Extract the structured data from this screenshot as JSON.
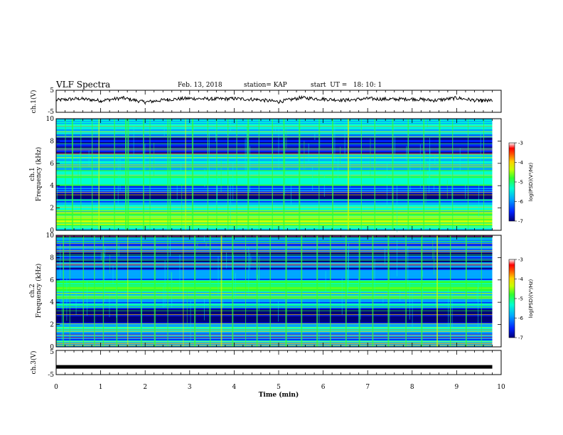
{
  "header": {
    "title": "VLF Spectra",
    "date": "Feb. 13, 2018",
    "station": "station= KAP",
    "start": "start  UT =   18: 10: 1"
  },
  "chart_data": [
    {
      "type": "line",
      "panel": "ch1-waveform",
      "ylabel": "ch.1(V)",
      "ylim": [
        -5,
        5
      ],
      "yticks": [
        "5",
        "-5"
      ],
      "xlim": [
        0,
        10
      ],
      "x": [
        0.0,
        0.5,
        1.0,
        1.5,
        2.0,
        2.5,
        3.0,
        3.5,
        4.0,
        4.5,
        5.0,
        5.5,
        6.0,
        6.5,
        7.0,
        7.5,
        8.0,
        8.5,
        9.0,
        9.5,
        9.8
      ],
      "y": [
        0.5,
        1.2,
        0.3,
        1.5,
        -0.4,
        0.8,
        1.3,
        1.0,
        1.2,
        0.8,
        -0.2,
        1.6,
        1.0,
        0.5,
        1.2,
        0.9,
        1.1,
        0.4,
        1.5,
        0.2,
        0.3
      ]
    },
    {
      "type": "heatmap",
      "panel": "ch1-spectrogram",
      "ylabel_top": "ch.1",
      "ylabel": "Frequency (kHz)",
      "ylim": [
        0,
        10
      ],
      "yticks": [
        "0",
        "2",
        "4",
        "6",
        "8",
        "10"
      ],
      "xlim": [
        0,
        9.8
      ],
      "bands": [
        {
          "from": 0.0,
          "to": 0.5,
          "level": 0.45
        },
        {
          "from": 0.5,
          "to": 1.0,
          "level": 0.58
        },
        {
          "from": 1.0,
          "to": 1.6,
          "level": 0.62
        },
        {
          "from": 1.6,
          "to": 2.4,
          "level": 0.45
        },
        {
          "from": 2.4,
          "to": 2.8,
          "level": 0.28
        },
        {
          "from": 2.8,
          "to": 3.4,
          "level": 0.05
        },
        {
          "from": 3.4,
          "to": 4.0,
          "level": 0.22
        },
        {
          "from": 4.0,
          "to": 4.6,
          "level": 0.4
        },
        {
          "from": 4.6,
          "to": 5.4,
          "level": 0.52
        },
        {
          "from": 5.4,
          "to": 6.0,
          "level": 0.32
        },
        {
          "from": 6.0,
          "to": 6.8,
          "level": 0.38
        },
        {
          "from": 6.8,
          "to": 7.6,
          "level": 0.1
        },
        {
          "from": 7.6,
          "to": 8.6,
          "level": 0.2
        },
        {
          "from": 8.6,
          "to": 10.0,
          "level": 0.4
        }
      ],
      "bursts_min": [
        0.2,
        0.35,
        0.55,
        0.8,
        0.95,
        1.3,
        1.55,
        1.6,
        1.95,
        2.1,
        2.5,
        2.55,
        2.9,
        3.05,
        3.4,
        3.6,
        3.85,
        4.05,
        4.3,
        4.55,
        4.85,
        5.1,
        5.45,
        5.9,
        6.2,
        6.55,
        6.85,
        7.15,
        7.55,
        7.9,
        8.25,
        8.6,
        8.9,
        9.25,
        9.6
      ]
    },
    {
      "type": "heatmap",
      "panel": "ch2-spectrogram",
      "ylabel_top": "ch.2",
      "ylabel": "Frequency (kHz)",
      "ylim": [
        0,
        10
      ],
      "yticks": [
        "0",
        "2",
        "4",
        "6",
        "8",
        "10"
      ],
      "xlim": [
        0,
        9.8
      ],
      "bands": [
        {
          "from": 0.0,
          "to": 0.6,
          "level": 0.4
        },
        {
          "from": 0.6,
          "to": 1.2,
          "level": 0.3
        },
        {
          "from": 1.2,
          "to": 1.8,
          "level": 0.38
        },
        {
          "from": 1.8,
          "to": 2.2,
          "level": 0.22
        },
        {
          "from": 2.2,
          "to": 3.4,
          "level": 0.06
        },
        {
          "from": 3.4,
          "to": 4.4,
          "level": 0.34
        },
        {
          "from": 4.4,
          "to": 5.0,
          "level": 0.4
        },
        {
          "from": 5.0,
          "to": 6.0,
          "level": 0.52
        },
        {
          "from": 6.0,
          "to": 7.0,
          "level": 0.3
        },
        {
          "from": 7.0,
          "to": 10.0,
          "level": 0.22
        }
      ],
      "bursts_min": [
        0.15,
        0.3,
        0.6,
        0.85,
        1.05,
        1.35,
        1.6,
        1.9,
        2.2,
        2.5,
        2.85,
        3.1,
        3.45,
        3.7,
        3.95,
        4.25,
        4.5,
        4.8,
        5.15,
        5.5,
        5.85,
        6.15,
        6.5,
        6.8,
        7.1,
        7.45,
        7.85,
        8.2,
        8.55,
        8.85,
        9.2,
        9.55
      ]
    },
    {
      "type": "line",
      "panel": "ch3-waveform",
      "ylabel": "ch.3(V)",
      "ylim": [
        -5,
        5
      ],
      "yticks": [
        "5",
        "-5"
      ],
      "xlim": [
        0,
        10
      ],
      "xlabel": "Time (min)",
      "xticks": [
        "0",
        "1",
        "2",
        "3",
        "4",
        "5",
        "6",
        "7",
        "8",
        "9",
        "10"
      ],
      "x": [
        0.0,
        9.8
      ],
      "y": [
        -1.8,
        -1.8
      ]
    }
  ],
  "colorbar": {
    "label": "log(PSD)(V²/Hz)",
    "range": [
      -7,
      -3
    ],
    "ticks": [
      "-3",
      "-4",
      "-5",
      "-6",
      "-7"
    ],
    "colors": [
      "#00007a",
      "#0022ff",
      "#00a8ff",
      "#00ffd0",
      "#30ff30",
      "#c8ff00",
      "#ffd000",
      "#ff5000",
      "#ff0000",
      "#ffffff"
    ]
  }
}
